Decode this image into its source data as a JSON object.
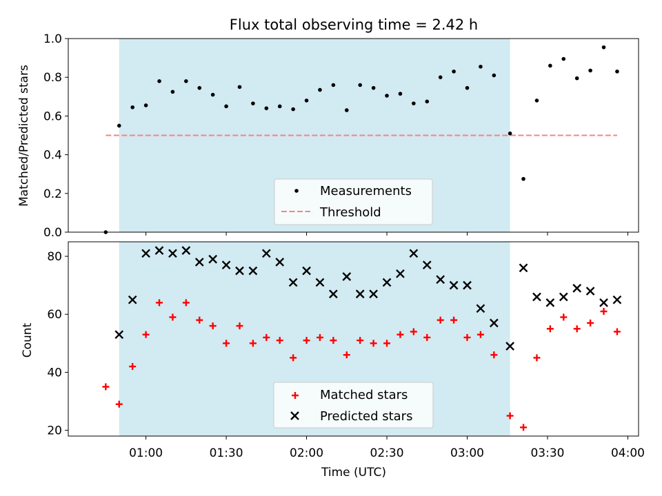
{
  "title": "Flux total observing time = 2.42 h",
  "colors": {
    "span": "#add8e6",
    "measurement": "#000000",
    "threshold": "#ff7f7f",
    "matched": "#ff0000",
    "predicted": "#000000"
  },
  "chart_data": [
    {
      "type": "scatter",
      "panel": "top",
      "title": "Flux total observing time = 2.42 h",
      "ylabel": "Matched/Predicted stars",
      "xlabel": "",
      "ylim": [
        0,
        1.0
      ],
      "yticks": [
        0.0,
        0.2,
        0.4,
        0.6,
        0.8,
        1.0
      ],
      "ytick_labels": [
        "0.0",
        "0.2",
        "0.4",
        "0.6",
        "0.8",
        "1.0"
      ],
      "xlim": [
        "00:31",
        "04:04"
      ],
      "grid": false,
      "legend_position": "lower center",
      "shaded_span": [
        "00:50",
        "03:16"
      ],
      "threshold": {
        "name": "Threshold",
        "y": 0.5,
        "x_start": "00:45",
        "x_end": "03:56"
      },
      "series": [
        {
          "name": "Measurements",
          "x": [
            "00:45",
            "00:50",
            "00:55",
            "01:00",
            "01:05",
            "01:10",
            "01:15",
            "01:20",
            "01:25",
            "01:30",
            "01:35",
            "01:40",
            "01:45",
            "01:50",
            "01:55",
            "02:00",
            "02:05",
            "02:10",
            "02:15",
            "02:20",
            "02:25",
            "02:30",
            "02:35",
            "02:40",
            "02:45",
            "02:50",
            "02:55",
            "03:00",
            "03:05",
            "03:10",
            "03:16",
            "03:21",
            "03:26",
            "03:31",
            "03:36",
            "03:41",
            "03:46",
            "03:51",
            "03:56"
          ],
          "y": [
            0.0,
            0.55,
            0.645,
            0.655,
            0.78,
            0.725,
            0.78,
            0.745,
            0.71,
            0.65,
            0.75,
            0.665,
            0.64,
            0.65,
            0.635,
            0.68,
            0.735,
            0.76,
            0.63,
            0.76,
            0.745,
            0.705,
            0.715,
            0.665,
            0.675,
            0.8,
            0.83,
            0.745,
            0.855,
            0.81,
            0.51,
            0.275,
            0.68,
            0.86,
            0.895,
            0.795,
            0.835,
            0.955,
            0.83
          ]
        }
      ]
    },
    {
      "type": "scatter",
      "panel": "bottom",
      "ylabel": "Count",
      "xlabel": "Time (UTC)",
      "ylim": [
        18,
        85
      ],
      "yticks": [
        20,
        40,
        60,
        80
      ],
      "ytick_labels": [
        "20",
        "40",
        "60",
        "80"
      ],
      "xlim": [
        "00:31",
        "04:04"
      ],
      "xticks": [
        "01:00",
        "01:30",
        "02:00",
        "02:30",
        "03:00",
        "03:30",
        "04:00"
      ],
      "xtick_labels": [
        "01:00",
        "01:30",
        "02:00",
        "02:30",
        "03:00",
        "03:30",
        "04:00"
      ],
      "grid": false,
      "legend_position": "lower center",
      "shaded_span": [
        "00:50",
        "03:16"
      ],
      "series": [
        {
          "name": "Matched stars",
          "marker": "+",
          "x": [
            "00:45",
            "00:50",
            "00:55",
            "01:00",
            "01:05",
            "01:10",
            "01:15",
            "01:20",
            "01:25",
            "01:30",
            "01:35",
            "01:40",
            "01:45",
            "01:50",
            "01:55",
            "02:00",
            "02:05",
            "02:10",
            "02:15",
            "02:20",
            "02:25",
            "02:30",
            "02:35",
            "02:40",
            "02:45",
            "02:50",
            "02:55",
            "03:00",
            "03:05",
            "03:10",
            "03:16",
            "03:21",
            "03:26",
            "03:31",
            "03:36",
            "03:41",
            "03:46",
            "03:51",
            "03:56"
          ],
          "y": [
            35,
            29,
            42,
            53,
            64,
            59,
            64,
            58,
            56,
            50,
            56,
            50,
            52,
            51,
            45,
            51,
            52,
            51,
            46,
            51,
            50,
            50,
            53,
            54,
            52,
            58,
            58,
            52,
            53,
            46,
            25,
            21,
            45,
            55,
            59,
            55,
            57,
            61,
            54
          ]
        },
        {
          "name": "Predicted stars",
          "marker": "x",
          "x": [
            "00:50",
            "00:55",
            "01:00",
            "01:05",
            "01:10",
            "01:15",
            "01:20",
            "01:25",
            "01:30",
            "01:35",
            "01:40",
            "01:45",
            "01:50",
            "01:55",
            "02:00",
            "02:05",
            "02:10",
            "02:15",
            "02:20",
            "02:25",
            "02:30",
            "02:35",
            "02:40",
            "02:45",
            "02:50",
            "02:55",
            "03:00",
            "03:05",
            "03:10",
            "03:16",
            "03:21",
            "03:26",
            "03:31",
            "03:36",
            "03:41",
            "03:46",
            "03:51",
            "03:56"
          ],
          "y": [
            53,
            65,
            81,
            82,
            81,
            82,
            78,
            79,
            77,
            75,
            75,
            81,
            78,
            71,
            75,
            71,
            67,
            73,
            67,
            67,
            71,
            74,
            81,
            77,
            72,
            70,
            70,
            62,
            57,
            49,
            76,
            66,
            64,
            66,
            69,
            68,
            64,
            65
          ]
        }
      ]
    }
  ]
}
